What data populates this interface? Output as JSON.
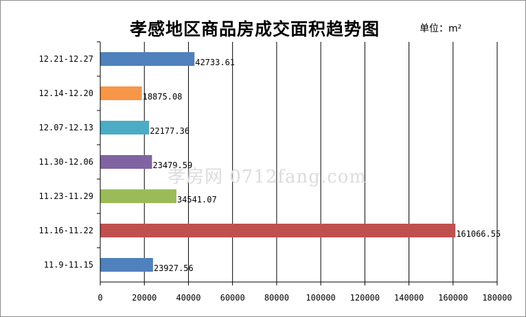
{
  "chart_data": {
    "type": "bar",
    "orientation": "horizontal",
    "title": "孝感地区商品房成交面积趋势图",
    "unit": "单位：m²",
    "watermark": "孝房网 0712fang.com",
    "categories": [
      "12.21-12.27",
      "12.14-12.20",
      "12.07-12.13",
      "11.30-12.06",
      "11.23-11.29",
      "11.16-11.22",
      "11.9-11.15"
    ],
    "values": [
      42733.61,
      18875.08,
      22177.36,
      23479.59,
      34541.07,
      161066.55,
      23927.56
    ],
    "value_labels": [
      "42733.61",
      "18875.08",
      "22177.36",
      "23479.59",
      "34541.07",
      "161066.55",
      "23927.56"
    ],
    "colors": [
      "#4f81bd",
      "#f79646",
      "#4bacc6",
      "#8064a2",
      "#9bbb59",
      "#c0504d",
      "#4f81bd"
    ],
    "xlim": [
      0,
      180000
    ],
    "xticks": [
      0,
      20000,
      40000,
      60000,
      80000,
      100000,
      120000,
      140000,
      160000,
      180000
    ],
    "grid": true
  }
}
